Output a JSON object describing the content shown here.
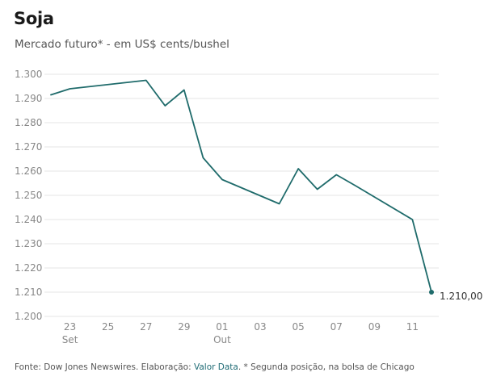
{
  "chart_data": {
    "type": "line",
    "title": "Soja",
    "subtitle": "Mercado futuro* - em US$ cents/bushel",
    "xlabel": "",
    "ylabel": "",
    "ylim": [
      1200,
      1300
    ],
    "y_ticks": [
      {
        "value": 1300,
        "label": "1.300"
      },
      {
        "value": 1290,
        "label": "1.290"
      },
      {
        "value": 1280,
        "label": "1.280"
      },
      {
        "value": 1270,
        "label": "1.270"
      },
      {
        "value": 1260,
        "label": "1.260"
      },
      {
        "value": 1250,
        "label": "1.250"
      },
      {
        "value": 1240,
        "label": "1.240"
      },
      {
        "value": 1230,
        "label": "1.230"
      },
      {
        "value": 1220,
        "label": "1.220"
      },
      {
        "value": 1210,
        "label": "1.210"
      },
      {
        "value": 1200,
        "label": "1.200"
      }
    ],
    "xlim": [
      "2024-09-22",
      "2024-10-12"
    ],
    "x_ticks": [
      {
        "date": "2024-09-23",
        "label": "23",
        "sublabel": "Set"
      },
      {
        "date": "2024-09-25",
        "label": "25",
        "sublabel": ""
      },
      {
        "date": "2024-09-27",
        "label": "27",
        "sublabel": ""
      },
      {
        "date": "2024-09-29",
        "label": "29",
        "sublabel": ""
      },
      {
        "date": "2024-10-01",
        "label": "01",
        "sublabel": "Out"
      },
      {
        "date": "2024-10-03",
        "label": "03",
        "sublabel": ""
      },
      {
        "date": "2024-10-05",
        "label": "05",
        "sublabel": ""
      },
      {
        "date": "2024-10-07",
        "label": "07",
        "sublabel": ""
      },
      {
        "date": "2024-10-09",
        "label": "09",
        "sublabel": ""
      },
      {
        "date": "2024-10-11",
        "label": "11",
        "sublabel": ""
      }
    ],
    "grid": true,
    "series": [
      {
        "color": "#1f6b6b",
        "points": [
          {
            "x": "2024-09-22",
            "y": 1291.5
          },
          {
            "x": "2024-09-23",
            "y": 1294.0
          },
          {
            "x": "2024-09-27",
            "y": 1297.5
          },
          {
            "x": "2024-09-28",
            "y": 1287.0
          },
          {
            "x": "2024-09-29",
            "y": 1293.5
          },
          {
            "x": "2024-09-30",
            "y": 1265.5
          },
          {
            "x": "2024-10-01",
            "y": 1256.5
          },
          {
            "x": "2024-10-04",
            "y": 1246.5
          },
          {
            "x": "2024-10-05",
            "y": 1261.0
          },
          {
            "x": "2024-10-06",
            "y": 1252.5
          },
          {
            "x": "2024-10-07",
            "y": 1258.5
          },
          {
            "x": "2024-10-08",
            "y": 1254.0
          },
          {
            "x": "2024-10-11",
            "y": 1240.0
          },
          {
            "x": "2024-10-12",
            "y": 1210.0
          }
        ]
      }
    ],
    "end_label": "1.210,00"
  },
  "footer": {
    "prefix": "Fonte: Dow Jones Newswires. Elaboração: ",
    "link": "Valor Data",
    "suffix": ". * Segunda posição, na bolsa de Chicago"
  },
  "colors": {
    "line": "#1f6b6b",
    "grid": "#e6e6e6",
    "link": "#1f6b75"
  }
}
